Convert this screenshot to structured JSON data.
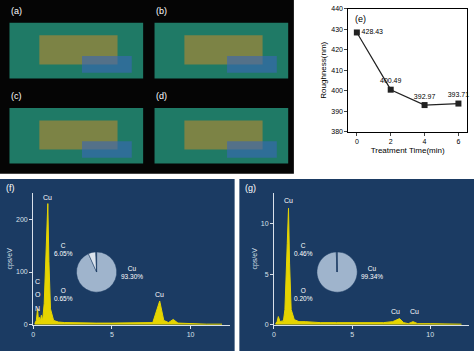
{
  "chart_data": [
    {
      "type": "image",
      "title": "(a)"
    },
    {
      "type": "image",
      "title": "(b)"
    },
    {
      "type": "image",
      "title": "(c)"
    },
    {
      "type": "image",
      "title": "(d)"
    },
    {
      "type": "line",
      "title": "(e)",
      "x": [
        0,
        2,
        4,
        6
      ],
      "values": [
        428.43,
        400.49,
        392.97,
        393.71
      ],
      "xlabel": "Treatment Time(min)",
      "ylabel": "Roughness(nm)",
      "xlim": [
        -0.5,
        6.5
      ],
      "xticks": [
        0,
        2,
        4,
        6
      ],
      "ylim": [
        380,
        440
      ],
      "yticks": [
        380,
        390,
        400,
        410,
        420,
        430,
        440
      ],
      "color": "#222222",
      "marker": "square",
      "data_labels": true,
      "grid": false
    },
    {
      "type": "spectrum",
      "title": "(f)",
      "ylabel": "cps/eV",
      "x": [
        0.1,
        0.2,
        0.28,
        0.33,
        0.39,
        0.45,
        0.52,
        0.6,
        0.7,
        0.85,
        0.93,
        1.0,
        1.1,
        1.3,
        1.6,
        2,
        3,
        4,
        5,
        6,
        7,
        7.6,
        8.04,
        8.3,
        8.6,
        8.9,
        9.2,
        10,
        11,
        12
      ],
      "values": [
        2,
        8,
        30,
        10,
        14,
        6,
        18,
        8,
        40,
        150,
        230,
        120,
        30,
        8,
        5,
        4,
        3,
        3,
        3,
        3,
        3,
        4,
        45,
        8,
        4,
        10,
        3,
        2,
        1,
        1
      ],
      "color": "#e6d400",
      "xlim": [
        0,
        12.5
      ],
      "xticks": [
        0,
        5,
        10
      ],
      "ylim": [
        0,
        250
      ],
      "yticks": [
        0,
        100,
        200
      ],
      "annotations": [
        {
          "x": 0.93,
          "y": 232,
          "text": "Cu"
        },
        {
          "x": 0.3,
          "y": 72,
          "text": "C"
        },
        {
          "x": 0.3,
          "y": 46,
          "text": "O"
        },
        {
          "x": 0.3,
          "y": 20,
          "text": "N"
        },
        {
          "x": 8.04,
          "y": 47,
          "text": "Cu"
        }
      ],
      "inset": {
        "type": "pie",
        "categories": [
          "Cu",
          "C",
          "O"
        ],
        "values": [
          93.3,
          6.05,
          0.65
        ],
        "value_labels": [
          "93.30%",
          "6.05%",
          "0.65%"
        ],
        "colors": [
          "#9fb4cc",
          "#dbe4ee",
          "#4f6b8a"
        ]
      }
    },
    {
      "type": "spectrum",
      "title": "(g)",
      "ylabel": "cps/eV",
      "x": [
        0.1,
        0.2,
        0.28,
        0.33,
        0.39,
        0.45,
        0.52,
        0.6,
        0.7,
        0.85,
        0.93,
        1.0,
        1.1,
        1.3,
        1.6,
        2,
        3,
        4,
        5,
        6,
        7,
        7.6,
        8.04,
        8.3,
        8.6,
        8.9,
        9.2,
        10,
        11,
        12
      ],
      "values": [
        0.1,
        0.3,
        0.8,
        0.4,
        0.3,
        0.3,
        0.4,
        0.3,
        1.5,
        8,
        11.5,
        6,
        1.5,
        0.5,
        0.3,
        0.3,
        0.2,
        0.2,
        0.2,
        0.2,
        0.2,
        0.3,
        0.6,
        0.2,
        0.1,
        0.3,
        0.1,
        0.1,
        0.05,
        0.05
      ],
      "color": "#e6d400",
      "xlim": [
        0,
        12.5
      ],
      "xticks": [
        0,
        5,
        10
      ],
      "ylim": [
        0,
        13
      ],
      "yticks": [
        0,
        5,
        10
      ],
      "annotations": [
        {
          "x": 0.93,
          "y": 11.7,
          "text": "Cu"
        },
        {
          "x": 7.8,
          "y": 0.8,
          "text": "Cu"
        },
        {
          "x": 9.0,
          "y": 0.8,
          "text": "Cu"
        }
      ],
      "inset": {
        "type": "pie",
        "categories": [
          "Cu",
          "C",
          "O"
        ],
        "values": [
          99.34,
          0.46,
          0.2
        ],
        "value_labels": [
          "99.34%",
          "0.46%",
          "0.20%"
        ],
        "colors": [
          "#9fb4cc",
          "#dbe4ee",
          "#4f6b8a"
        ]
      }
    }
  ]
}
